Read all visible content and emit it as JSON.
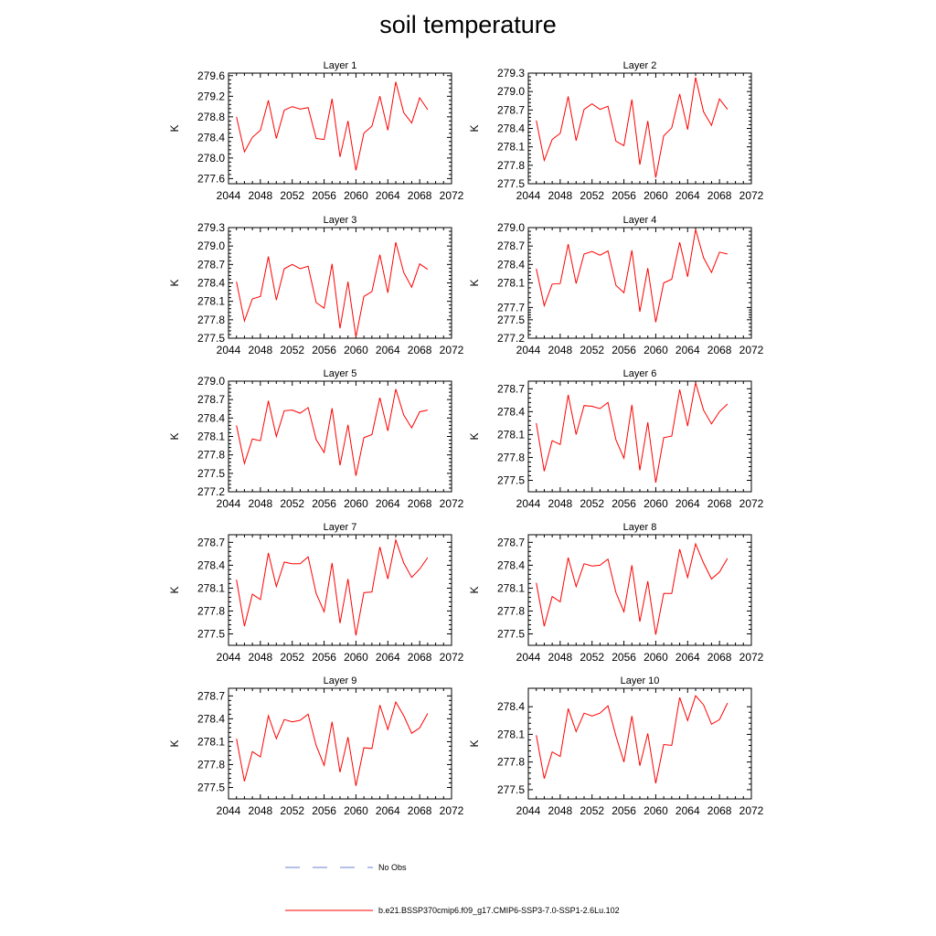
{
  "page": {
    "title": "soil temperature"
  },
  "legend": {
    "obs_label": "No Obs",
    "obs_color": "#6b7fd6",
    "model_label": "b.e21.BSSP370cmip6.f09_g17.CMIP6-SSP3-7.0-SSP1-2.6Lu.102",
    "model_color": "#ff0000"
  },
  "chart_data": [
    {
      "type": "line",
      "title": "Layer 1",
      "ylabel": "K",
      "xlim": [
        2044,
        2072
      ],
      "ylim": [
        277.5,
        279.65
      ],
      "xticks": [
        2044,
        2048,
        2052,
        2056,
        2060,
        2064,
        2068,
        2072
      ],
      "yticks": [
        277.6,
        278.0,
        278.4,
        278.8,
        279.2,
        279.6
      ],
      "ytick_labels": [
        "277.6",
        "278.0",
        "278.4",
        "278.8",
        "279.2",
        "279.6"
      ],
      "grid": false,
      "series": [
        {
          "color": "#ff0000",
          "x": [
            2045,
            2046,
            2047,
            2048,
            2049,
            2050,
            2051,
            2052,
            2053,
            2054,
            2055,
            2056,
            2057,
            2058,
            2059,
            2060,
            2061,
            2062,
            2063,
            2064,
            2065,
            2066,
            2067,
            2068,
            2069
          ],
          "values": [
            278.8,
            278.12,
            278.4,
            278.54,
            279.12,
            278.38,
            278.93,
            279.0,
            278.95,
            278.98,
            278.38,
            278.36,
            279.15,
            278.02,
            278.72,
            277.76,
            278.48,
            278.62,
            279.2,
            278.54,
            279.48,
            278.88,
            278.68,
            279.17,
            278.94
          ]
        }
      ]
    },
    {
      "type": "line",
      "title": "Layer 2",
      "ylabel": "K",
      "xlim": [
        2044,
        2072
      ],
      "ylim": [
        277.5,
        279.3
      ],
      "xticks": [
        2044,
        2048,
        2052,
        2056,
        2060,
        2064,
        2068,
        2072
      ],
      "yticks": [
        277.5,
        277.8,
        278.1,
        278.4,
        278.7,
        279.0,
        279.3
      ],
      "ytick_labels": [
        "277.5",
        "277.8",
        "278.1",
        "278.4",
        "278.7",
        "279.0",
        "279.3"
      ],
      "grid": false,
      "series": [
        {
          "color": "#ff0000",
          "x": [
            2045,
            2046,
            2047,
            2048,
            2049,
            2050,
            2051,
            2052,
            2053,
            2054,
            2055,
            2056,
            2057,
            2058,
            2059,
            2060,
            2061,
            2062,
            2063,
            2064,
            2065,
            2066,
            2067,
            2068,
            2069
          ],
          "values": [
            278.53,
            277.88,
            278.22,
            278.32,
            278.92,
            278.2,
            278.71,
            278.8,
            278.71,
            278.76,
            278.19,
            278.12,
            278.87,
            277.81,
            278.52,
            277.6,
            278.28,
            278.41,
            278.96,
            278.38,
            279.23,
            278.67,
            278.45,
            278.88,
            278.71
          ]
        }
      ]
    },
    {
      "type": "line",
      "title": "Layer 3",
      "ylabel": "K",
      "xlim": [
        2044,
        2072
      ],
      "ylim": [
        277.5,
        279.3
      ],
      "xticks": [
        2044,
        2048,
        2052,
        2056,
        2060,
        2064,
        2068,
        2072
      ],
      "yticks": [
        277.5,
        277.8,
        278.1,
        278.4,
        278.7,
        279.0,
        279.3
      ],
      "ytick_labels": [
        "277.5",
        "277.8",
        "278.1",
        "278.4",
        "278.7",
        "279.0",
        "279.3"
      ],
      "grid": false,
      "series": [
        {
          "color": "#ff0000",
          "x": [
            2045,
            2046,
            2047,
            2048,
            2049,
            2050,
            2051,
            2052,
            2053,
            2054,
            2055,
            2056,
            2057,
            2058,
            2059,
            2060,
            2061,
            2062,
            2063,
            2064,
            2065,
            2066,
            2067,
            2068,
            2069
          ],
          "values": [
            278.42,
            277.78,
            278.14,
            278.18,
            278.83,
            278.12,
            278.63,
            278.7,
            278.63,
            278.67,
            278.08,
            277.99,
            278.71,
            277.66,
            278.42,
            277.52,
            278.18,
            278.26,
            278.86,
            278.24,
            279.06,
            278.57,
            278.33,
            278.71,
            278.62
          ]
        }
      ]
    },
    {
      "type": "line",
      "title": "Layer 4",
      "ylabel": "K",
      "xlim": [
        2044,
        2072
      ],
      "ylim": [
        277.2,
        279.0
      ],
      "xticks": [
        2044,
        2048,
        2052,
        2056,
        2060,
        2064,
        2068,
        2072
      ],
      "yticks": [
        277.2,
        277.5,
        277.7,
        278.1,
        278.4,
        278.7,
        279.0
      ],
      "ytick_labels": [
        "277.2",
        "277.5",
        "277.7",
        "278.1",
        "278.4",
        "278.7",
        "279.0"
      ],
      "grid": false,
      "series": [
        {
          "color": "#ff0000",
          "x": [
            2045,
            2046,
            2047,
            2048,
            2049,
            2050,
            2051,
            2052,
            2053,
            2054,
            2055,
            2056,
            2057,
            2058,
            2059,
            2060,
            2061,
            2062,
            2063,
            2064,
            2065,
            2066,
            2067,
            2068,
            2069
          ],
          "values": [
            278.33,
            277.73,
            278.08,
            278.09,
            278.73,
            278.09,
            278.57,
            278.61,
            278.55,
            278.62,
            278.06,
            277.94,
            278.63,
            277.63,
            278.34,
            277.46,
            278.1,
            278.16,
            278.76,
            278.2,
            278.97,
            278.51,
            278.27,
            278.6,
            278.57
          ]
        }
      ]
    },
    {
      "type": "line",
      "title": "Layer 5",
      "ylabel": "K",
      "xlim": [
        2044,
        2072
      ],
      "ylim": [
        277.2,
        279.0
      ],
      "xticks": [
        2044,
        2048,
        2052,
        2056,
        2060,
        2064,
        2068,
        2072
      ],
      "yticks": [
        277.2,
        277.5,
        277.8,
        278.1,
        278.4,
        278.7,
        279.0
      ],
      "ytick_labels": [
        "277.2",
        "277.5",
        "277.8",
        "278.1",
        "278.4",
        "278.7",
        "279.0"
      ],
      "grid": false,
      "series": [
        {
          "color": "#ff0000",
          "x": [
            2045,
            2046,
            2047,
            2048,
            2049,
            2050,
            2051,
            2052,
            2053,
            2054,
            2055,
            2056,
            2057,
            2058,
            2059,
            2060,
            2061,
            2062,
            2063,
            2064,
            2065,
            2066,
            2067,
            2068,
            2069
          ],
          "values": [
            278.28,
            277.66,
            278.06,
            278.03,
            278.68,
            278.1,
            278.52,
            278.53,
            278.48,
            278.57,
            278.05,
            277.84,
            278.56,
            277.63,
            278.29,
            277.46,
            278.08,
            278.13,
            278.73,
            278.19,
            278.87,
            278.45,
            278.24,
            278.5,
            278.53
          ]
        }
      ]
    },
    {
      "type": "line",
      "title": "Layer 6",
      "ylabel": "K",
      "xlim": [
        2044,
        2072
      ],
      "ylim": [
        277.35,
        278.8
      ],
      "xticks": [
        2044,
        2048,
        2052,
        2056,
        2060,
        2064,
        2068,
        2072
      ],
      "yticks": [
        277.5,
        277.8,
        278.1,
        278.4,
        278.7
      ],
      "ytick_labels": [
        "277.5",
        "277.8",
        "278.1",
        "278.4",
        "278.7"
      ],
      "grid": false,
      "series": [
        {
          "color": "#ff0000",
          "x": [
            2045,
            2046,
            2047,
            2048,
            2049,
            2050,
            2051,
            2052,
            2053,
            2054,
            2055,
            2056,
            2057,
            2058,
            2059,
            2060,
            2061,
            2062,
            2063,
            2064,
            2065,
            2066,
            2067,
            2068,
            2069
          ],
          "values": [
            278.25,
            277.62,
            278.02,
            277.97,
            278.62,
            278.1,
            278.48,
            278.47,
            278.44,
            278.52,
            278.03,
            277.79,
            278.49,
            277.63,
            278.26,
            277.47,
            278.06,
            278.08,
            278.69,
            278.21,
            278.78,
            278.42,
            278.24,
            278.4,
            278.5
          ]
        }
      ]
    },
    {
      "type": "line",
      "title": "Layer 7",
      "ylabel": "K",
      "xlim": [
        2044,
        2072
      ],
      "ylim": [
        277.35,
        278.8
      ],
      "xticks": [
        2044,
        2048,
        2052,
        2056,
        2060,
        2064,
        2068,
        2072
      ],
      "yticks": [
        277.5,
        277.8,
        278.1,
        278.4,
        278.7
      ],
      "ytick_labels": [
        "277.5",
        "277.8",
        "278.1",
        "278.4",
        "278.7"
      ],
      "grid": false,
      "series": [
        {
          "color": "#ff0000",
          "x": [
            2045,
            2046,
            2047,
            2048,
            2049,
            2050,
            2051,
            2052,
            2053,
            2054,
            2055,
            2056,
            2057,
            2058,
            2059,
            2060,
            2061,
            2062,
            2063,
            2064,
            2065,
            2066,
            2067,
            2068,
            2069
          ],
          "values": [
            278.21,
            277.6,
            278.02,
            277.95,
            278.56,
            278.12,
            278.44,
            278.42,
            278.42,
            278.51,
            278.03,
            277.79,
            278.43,
            277.64,
            278.22,
            277.48,
            278.04,
            278.05,
            278.64,
            278.22,
            278.73,
            278.43,
            278.24,
            278.35,
            278.5
          ]
        }
      ]
    },
    {
      "type": "line",
      "title": "Layer 8",
      "ylabel": "K",
      "xlim": [
        2044,
        2072
      ],
      "ylim": [
        277.35,
        278.8
      ],
      "xticks": [
        2044,
        2048,
        2052,
        2056,
        2060,
        2064,
        2068,
        2072
      ],
      "yticks": [
        277.5,
        277.8,
        278.1,
        278.4,
        278.7
      ],
      "ytick_labels": [
        "277.5",
        "277.8",
        "278.1",
        "278.4",
        "278.7"
      ],
      "grid": false,
      "series": [
        {
          "color": "#ff0000",
          "x": [
            2045,
            2046,
            2047,
            2048,
            2049,
            2050,
            2051,
            2052,
            2053,
            2054,
            2055,
            2056,
            2057,
            2058,
            2059,
            2060,
            2061,
            2062,
            2063,
            2064,
            2065,
            2066,
            2067,
            2068,
            2069
          ],
          "values": [
            278.17,
            277.6,
            277.99,
            277.92,
            278.5,
            278.12,
            278.42,
            278.39,
            278.4,
            278.48,
            278.04,
            277.79,
            278.4,
            277.66,
            278.19,
            277.49,
            278.03,
            278.03,
            278.61,
            278.24,
            278.68,
            278.43,
            278.22,
            278.31,
            278.49
          ]
        }
      ]
    },
    {
      "type": "line",
      "title": "Layer 9",
      "ylabel": "K",
      "xlim": [
        2044,
        2072
      ],
      "ylim": [
        277.35,
        278.8
      ],
      "xticks": [
        2044,
        2048,
        2052,
        2056,
        2060,
        2064,
        2068,
        2072
      ],
      "yticks": [
        277.5,
        277.8,
        278.1,
        278.4,
        278.7
      ],
      "ytick_labels": [
        "277.5",
        "277.8",
        "278.1",
        "278.4",
        "278.7"
      ],
      "grid": false,
      "series": [
        {
          "color": "#ff0000",
          "x": [
            2045,
            2046,
            2047,
            2048,
            2049,
            2050,
            2051,
            2052,
            2053,
            2054,
            2055,
            2056,
            2057,
            2058,
            2059,
            2060,
            2061,
            2062,
            2063,
            2064,
            2065,
            2066,
            2067,
            2068,
            2069
          ],
          "values": [
            278.14,
            277.58,
            277.97,
            277.9,
            278.44,
            278.14,
            278.39,
            278.36,
            278.38,
            278.46,
            278.05,
            277.79,
            278.36,
            277.7,
            278.16,
            277.52,
            278.02,
            278.01,
            278.58,
            278.26,
            278.62,
            278.44,
            278.21,
            278.28,
            278.47
          ]
        }
      ]
    },
    {
      "type": "line",
      "title": "Layer 10",
      "ylabel": "K",
      "xlim": [
        2044,
        2072
      ],
      "ylim": [
        277.4,
        278.6
      ],
      "xticks": [
        2044,
        2048,
        2052,
        2056,
        2060,
        2064,
        2068,
        2072
      ],
      "yticks": [
        277.5,
        277.8,
        278.1,
        278.4
      ],
      "ytick_labels": [
        "277.5",
        "277.8",
        "278.1",
        "278.4"
      ],
      "grid": false,
      "series": [
        {
          "color": "#ff0000",
          "x": [
            2045,
            2046,
            2047,
            2048,
            2049,
            2050,
            2051,
            2052,
            2053,
            2054,
            2055,
            2056,
            2057,
            2058,
            2059,
            2060,
            2061,
            2062,
            2063,
            2064,
            2065,
            2066,
            2067,
            2068,
            2069
          ],
          "values": [
            278.09,
            277.62,
            277.91,
            277.86,
            278.38,
            278.13,
            278.33,
            278.3,
            278.33,
            278.41,
            278.08,
            277.8,
            278.3,
            277.76,
            278.11,
            277.57,
            277.99,
            277.98,
            278.5,
            278.25,
            278.52,
            278.42,
            278.21,
            278.26,
            278.44
          ]
        }
      ]
    }
  ]
}
